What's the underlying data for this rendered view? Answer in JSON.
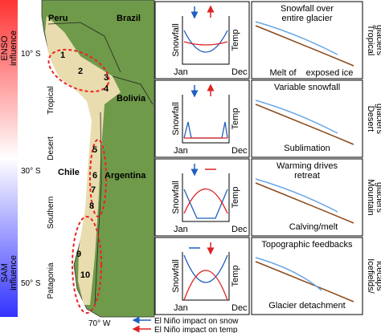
{
  "side_labels": {
    "enso": [
      "ENSO",
      "influence"
    ],
    "sam": [
      "SAM",
      "influence"
    ]
  },
  "map": {
    "countries": [
      "Peru",
      "Brazil",
      "Bolivia",
      "Chile",
      "Argentina"
    ],
    "latitudes": [
      "10° S",
      "30° S",
      "50° S"
    ],
    "longitude": "70° W",
    "regions": [
      "Tropical",
      "Desert",
      "Southern",
      "Patagonia"
    ],
    "sites": [
      "1",
      "2",
      "3",
      "4",
      "5",
      "6",
      "7",
      "8",
      "9",
      "10"
    ]
  },
  "panels": [
    {
      "y_left": "Snowfall",
      "y_right": "Temp",
      "x_start": "Jan",
      "x_end": "Dec",
      "texts": [
        "Snowfall over",
        "entire glacier",
        "Melt of",
        "exposed ice"
      ],
      "label": [
        "Tropical",
        "glaciers"
      ]
    },
    {
      "y_left": "Snowfall",
      "y_right": "Temp",
      "x_start": "Jan",
      "x_end": "Dec",
      "texts": [
        "Variable snowfall",
        "Sublimation"
      ],
      "label": [
        "Desert",
        "glaciers"
      ]
    },
    {
      "y_left": "Snowfall",
      "y_right": "Temp",
      "x_start": "Jan",
      "x_end": "Dec",
      "texts": [
        "Warming drives",
        "retreat",
        "Calving/melt"
      ],
      "label": [
        "Mountain",
        "glaciers"
      ]
    },
    {
      "y_left": "Snowfall",
      "y_right": "Temp",
      "x_start": "Jan",
      "x_end": "Dec",
      "texts": [
        "Topographic feedbacks",
        "Glacier detachment"
      ],
      "label": [
        "Icefields/",
        "icecaps"
      ]
    }
  ],
  "legend": [
    "El Niño impact on snow",
    "El Niño impact on temp"
  ]
}
